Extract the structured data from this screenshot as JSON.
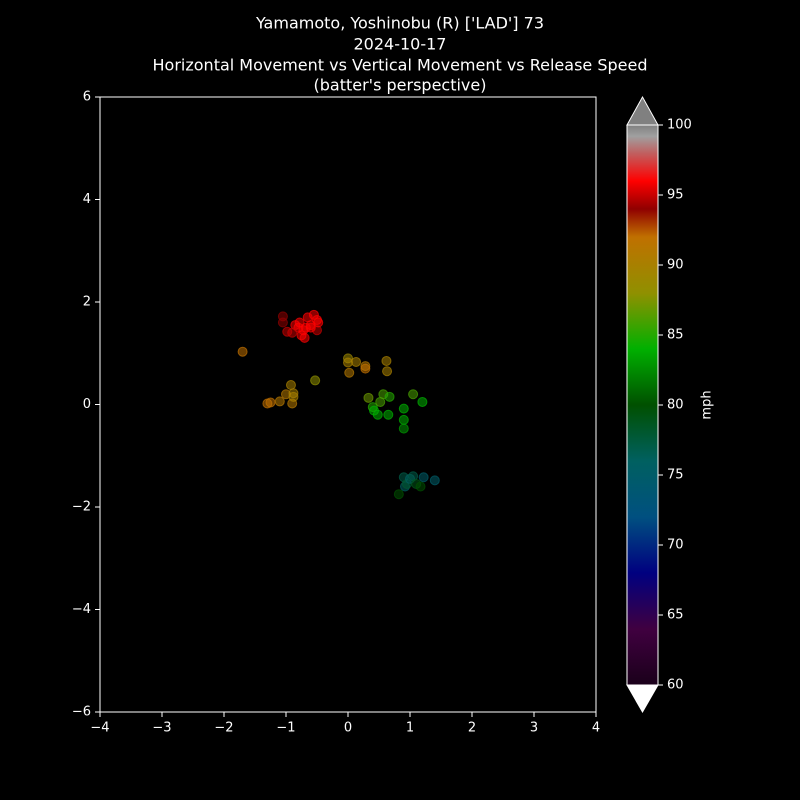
{
  "chart_data": {
    "type": "scatter",
    "title": [
      "Yamamoto, Yoshinobu (R) ['LAD'] 73",
      "2024-10-17",
      "Horizontal Movement vs Vertical Movement vs Release Speed",
      "(batter's perspective)"
    ],
    "x": [
      -1.05,
      -1.05,
      -0.98,
      -0.85,
      -0.8,
      -0.75,
      -0.7,
      -0.72,
      -0.65,
      -0.6,
      -0.55,
      -0.5,
      -0.5,
      -0.48,
      -0.6,
      -0.78,
      -0.9,
      -0.68,
      -1.7,
      -1.3,
      -1.25,
      -1.1,
      -1.0,
      -0.92,
      -0.9,
      -0.88,
      -0.88,
      0.0,
      0.0,
      0.02,
      0.13,
      0.28,
      0.28,
      0.62,
      0.63,
      -0.53,
      0.33,
      0.4,
      0.42,
      0.48,
      0.52,
      0.57,
      0.65,
      0.67,
      0.9,
      0.9,
      0.9,
      1.05,
      1.2,
      0.82,
      0.9,
      0.92,
      0.95,
      1.0,
      1.05,
      1.1,
      1.17,
      1.22,
      1.4
    ],
    "y": [
      1.72,
      1.6,
      1.42,
      1.55,
      1.5,
      1.35,
      1.3,
      1.45,
      1.7,
      1.55,
      1.75,
      1.65,
      1.45,
      1.6,
      1.5,
      1.6,
      1.4,
      1.5,
      1.03,
      0.02,
      0.04,
      0.06,
      0.2,
      0.38,
      0.02,
      0.22,
      0.15,
      0.9,
      0.82,
      0.62,
      0.83,
      0.75,
      0.7,
      0.85,
      0.65,
      0.47,
      0.13,
      -0.05,
      -0.12,
      -0.2,
      0.05,
      0.2,
      -0.2,
      0.15,
      -0.08,
      -0.3,
      -0.47,
      0.2,
      0.05,
      -1.75,
      -1.42,
      -1.6,
      -1.55,
      -1.45,
      -1.4,
      -1.55,
      -1.6,
      -1.42,
      -1.48
    ],
    "c": [
      94,
      94,
      95,
      96,
      96,
      96,
      96,
      96,
      96,
      96,
      96,
      96,
      95,
      96,
      96,
      96,
      95,
      96,
      92,
      92,
      92,
      91,
      91,
      90,
      91,
      90,
      90,
      89,
      90,
      91,
      90,
      91,
      92,
      90,
      90,
      88,
      87,
      85,
      84,
      84,
      86,
      86,
      84,
      85,
      84,
      84,
      83,
      86,
      84,
      80,
      77,
      76,
      78,
      76,
      77,
      79,
      80,
      75,
      75
    ],
    "xlim": [
      -4,
      4
    ],
    "xticks": [
      {
        "value": -4,
        "label": "−4"
      },
      {
        "value": -3,
        "label": "−3"
      },
      {
        "value": -2,
        "label": "−2"
      },
      {
        "value": -1,
        "label": "−1"
      },
      0,
      1,
      2,
      3,
      4
    ],
    "ylim": [
      -6,
      6
    ],
    "yticks": [
      {
        "value": -6,
        "label": "−6"
      },
      {
        "value": -4,
        "label": "−4"
      },
      {
        "value": -2,
        "label": "−2"
      },
      0,
      2,
      4,
      6
    ],
    "clim": [
      60,
      100
    ],
    "cticks": [
      60,
      65,
      70,
      75,
      80,
      85,
      90,
      95,
      100
    ],
    "colorbar_label": "mph",
    "colorbar_extend": "both"
  }
}
